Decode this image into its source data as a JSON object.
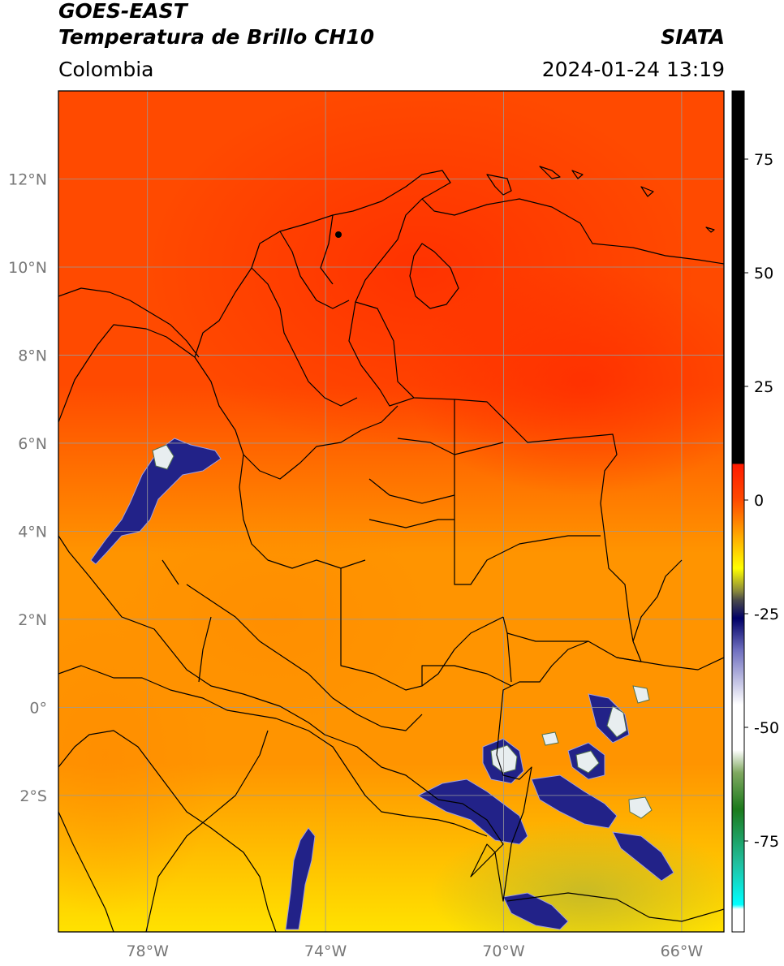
{
  "header": {
    "satellite": "GOES-EAST",
    "product": "Temperatura de Brillo CH10",
    "agency": "SIATA",
    "region": "Colombia",
    "timestamp": "2024-01-24 13:19"
  },
  "map": {
    "lon_range": [
      -80,
      -65.05
    ],
    "lat_range": [
      -5.1,
      14.0
    ],
    "lon_ticks": [
      {
        "value": -78,
        "label": "78°W"
      },
      {
        "value": -74,
        "label": "74°W"
      },
      {
        "value": -70,
        "label": "70°W"
      },
      {
        "value": -66,
        "label": "66°W"
      }
    ],
    "lat_ticks": [
      {
        "value": 12,
        "label": "12°N"
      },
      {
        "value": 10,
        "label": "10°N"
      },
      {
        "value": 8,
        "label": "8°N"
      },
      {
        "value": 6,
        "label": "6°N"
      },
      {
        "value": 4,
        "label": "4°N"
      },
      {
        "value": 2,
        "label": "2°N"
      },
      {
        "value": 0,
        "label": "0°"
      },
      {
        "value": -2,
        "label": "2°S"
      }
    ],
    "gridlines": true
  },
  "colorbar": {
    "range": [
      -95,
      90
    ],
    "ticks": [
      {
        "value": 75,
        "label": "75"
      },
      {
        "value": 50,
        "label": "50"
      },
      {
        "value": 25,
        "label": "25"
      },
      {
        "value": 0,
        "label": "0"
      },
      {
        "value": -25,
        "label": "-25"
      },
      {
        "value": -50,
        "label": "-50"
      },
      {
        "value": -75,
        "label": "-75"
      }
    ],
    "stops": [
      {
        "value": 90,
        "color": "#000000"
      },
      {
        "value": 8,
        "color": "#000000"
      },
      {
        "value": 7.9,
        "color": "#ff1a00"
      },
      {
        "value": 0,
        "color": "#ff4a00"
      },
      {
        "value": -8,
        "color": "#ffaa00"
      },
      {
        "value": -15,
        "color": "#ffff00"
      },
      {
        "value": -20,
        "color": "#8a8a3a"
      },
      {
        "value": -22,
        "color": "#4a4a4a"
      },
      {
        "value": -26,
        "color": "#000066"
      },
      {
        "value": -33,
        "color": "#6f6fbf"
      },
      {
        "value": -45,
        "color": "#ffffff"
      },
      {
        "value": -55,
        "color": "#ffffff"
      },
      {
        "value": -60,
        "color": "#7fa860"
      },
      {
        "value": -68,
        "color": "#1c7a1c"
      },
      {
        "value": -80,
        "color": "#20c0a0"
      },
      {
        "value": -89,
        "color": "#00ffff"
      },
      {
        "value": -90,
        "color": "#ffffff"
      },
      {
        "value": -95,
        "color": "#ffffff"
      }
    ]
  },
  "colors": {
    "border": "#000000",
    "gridline": "#9a9a9a",
    "tick_label": "#777777",
    "warm_north": "#ff4a00",
    "mid": "#ff9400",
    "south": "#ffe200",
    "cold_cloud": "#1a1a80"
  }
}
